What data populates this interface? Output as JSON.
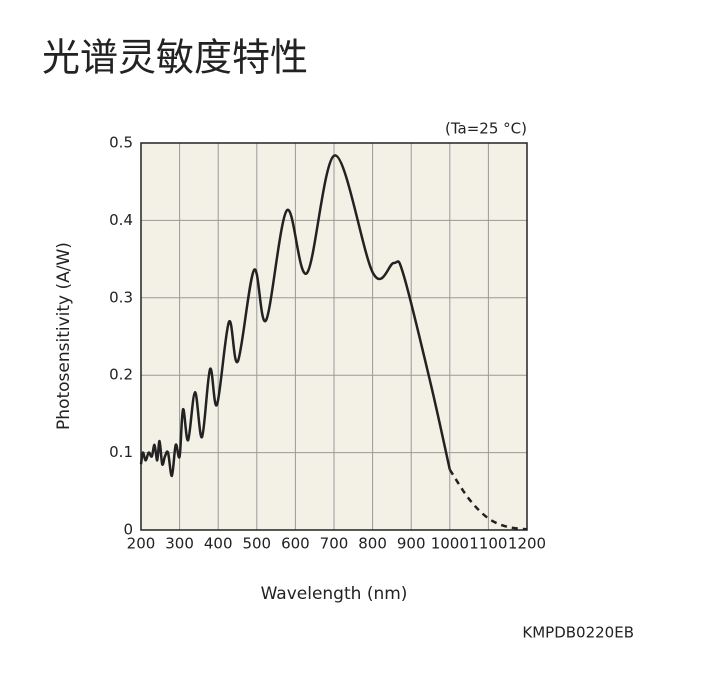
{
  "chart_data": {
    "type": "line",
    "title": "光谱灵敏度特性",
    "annotation": "(Ta=25 °C)",
    "code": "KMPDB0220EB",
    "xlabel": "Wavelength (nm)",
    "ylabel": "Photosensitivity (A/W)",
    "x": [
      200,
      205,
      212,
      220,
      228,
      235,
      242,
      248,
      255,
      262,
      270,
      280,
      290,
      300,
      309,
      322,
      340,
      358,
      379,
      397,
      428,
      451,
      493,
      524,
      578,
      630,
      703,
      801,
      855,
      880,
      950,
      1000,
      1050,
      1100,
      1150,
      1200
    ],
    "series": [
      {
        "color": "#222222",
        "style": "solid",
        "values": [
          0.085,
          0.1,
          0.09,
          0.1,
          0.095,
          0.11,
          0.09,
          0.115,
          0.085,
          0.095,
          0.1,
          0.07,
          0.11,
          0.095,
          0.156,
          0.116,
          0.178,
          0.12,
          0.208,
          0.162,
          0.269,
          0.218,
          0.336,
          0.271,
          0.413,
          0.332,
          0.484,
          0.332,
          0.345,
          0.33,
          0.19,
          0.078,
          null,
          null,
          null,
          null
        ]
      },
      {
        "color": "#222222",
        "style": "dashed",
        "values": [
          null,
          null,
          null,
          null,
          null,
          null,
          null,
          null,
          null,
          null,
          null,
          null,
          null,
          null,
          null,
          null,
          null,
          null,
          null,
          null,
          null,
          null,
          null,
          null,
          null,
          null,
          null,
          null,
          null,
          null,
          null,
          0.078,
          0.04,
          0.015,
          0.004,
          0.001
        ]
      }
    ],
    "xlim": [
      200,
      1200
    ],
    "xticks": [
      200,
      300,
      400,
      500,
      600,
      700,
      800,
      900,
      1000,
      1100,
      1200
    ],
    "ylim": [
      0,
      0.5
    ],
    "yticks": [
      0,
      0.1,
      0.2,
      0.3,
      0.4,
      0.5
    ],
    "grid": true,
    "background": "#f3f1e6"
  }
}
